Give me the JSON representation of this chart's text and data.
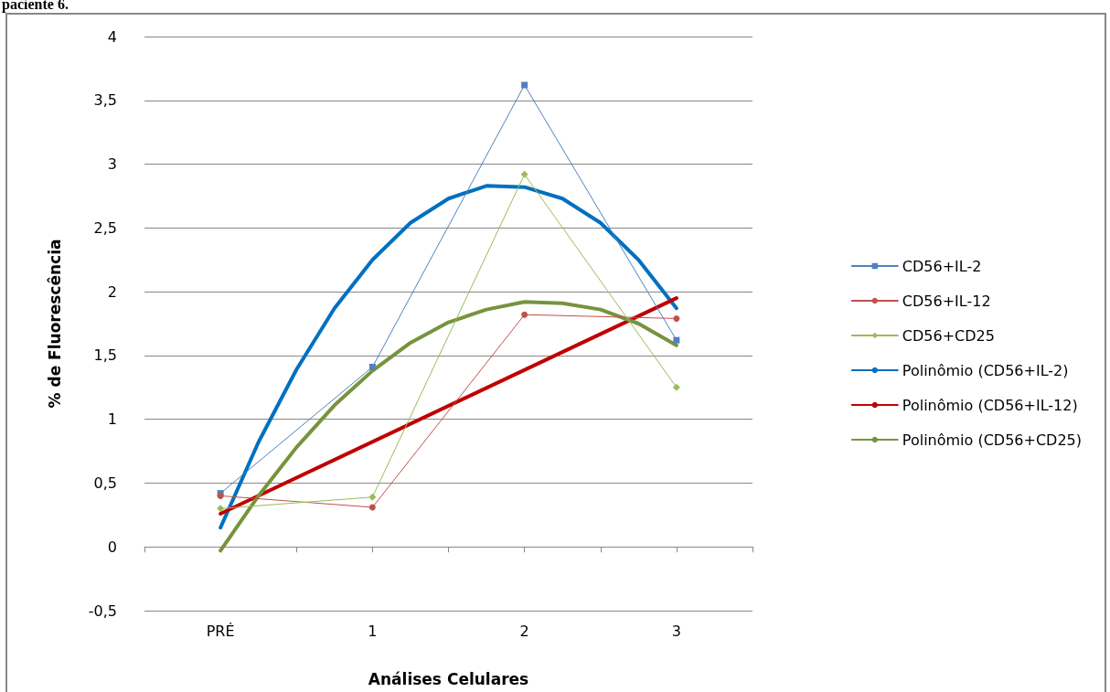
{
  "chart_data": {
    "type": "line",
    "xlabel": "Análises Celulares",
    "ylabel": "% de Fluorescência",
    "annotations": [
      "paciente 6."
    ],
    "x": [
      0,
      1,
      2,
      3
    ],
    "xlim": [
      -0.5,
      3.5
    ],
    "xticks": [
      {
        "value": -0.5,
        "label": null
      },
      {
        "value": 0,
        "label": "PRÉ"
      },
      {
        "value": 0.5,
        "label": null
      },
      {
        "value": 1,
        "label": "1"
      },
      {
        "value": 1.5,
        "label": null
      },
      {
        "value": 2,
        "label": "2"
      },
      {
        "value": 2.5,
        "label": null
      },
      {
        "value": 3,
        "label": "3"
      },
      {
        "value": 3.5,
        "label": null
      }
    ],
    "ylim": [
      -0.5,
      4
    ],
    "yticks": [
      {
        "value": -0.5,
        "label": "-0,5"
      },
      0,
      {
        "value": 0.5,
        "label": "0,5"
      },
      1,
      {
        "value": 1.5,
        "label": "1,5"
      },
      2,
      {
        "value": 2.5,
        "label": "2,5"
      },
      3,
      {
        "value": 3.5,
        "label": "3,5"
      },
      4
    ],
    "grid": "y",
    "legend": "right",
    "line_style": "solid",
    "series": [
      {
        "name": "CD56+IL-2",
        "color": "#4f81bd",
        "marker": "square",
        "values": [
          0.42,
          1.41,
          3.62,
          1.62
        ]
      },
      {
        "name": "CD56+IL-12",
        "color": "#c0504d",
        "marker": "circle",
        "values": [
          0.4,
          0.31,
          1.82,
          1.79
        ]
      },
      {
        "name": "CD56+CD25",
        "color": "#9bbb59",
        "marker": "diamond",
        "values": [
          0.3,
          0.39,
          2.92,
          1.25
        ]
      },
      {
        "name": "Polinômio (CD56+IL-2)",
        "color": "#0070c0",
        "marker": "none",
        "x": [
          0,
          0.25,
          0.5,
          0.75,
          1,
          1.25,
          1.5,
          1.75,
          2,
          2.25,
          2.5,
          2.75,
          3
        ],
        "values": [
          0.15,
          0.82,
          1.39,
          1.87,
          2.25,
          2.54,
          2.73,
          2.83,
          2.82,
          2.73,
          2.54,
          2.25,
          1.87
        ]
      },
      {
        "name": "Polinômio (CD56+IL-12)",
        "color": "#c00000",
        "marker": "none",
        "x": [
          0,
          3
        ],
        "values": [
          0.26,
          1.95
        ]
      },
      {
        "name": "Polinômio (CD56+CD25)",
        "color": "#77933c",
        "marker": "none",
        "x": [
          0,
          0.25,
          0.5,
          0.75,
          1,
          1.25,
          1.5,
          1.75,
          2,
          2.25,
          2.5,
          2.75,
          3
        ],
        "values": [
          -0.03,
          0.4,
          0.78,
          1.11,
          1.38,
          1.6,
          1.76,
          1.86,
          1.92,
          1.91,
          1.86,
          1.75,
          1.58
        ]
      }
    ]
  }
}
